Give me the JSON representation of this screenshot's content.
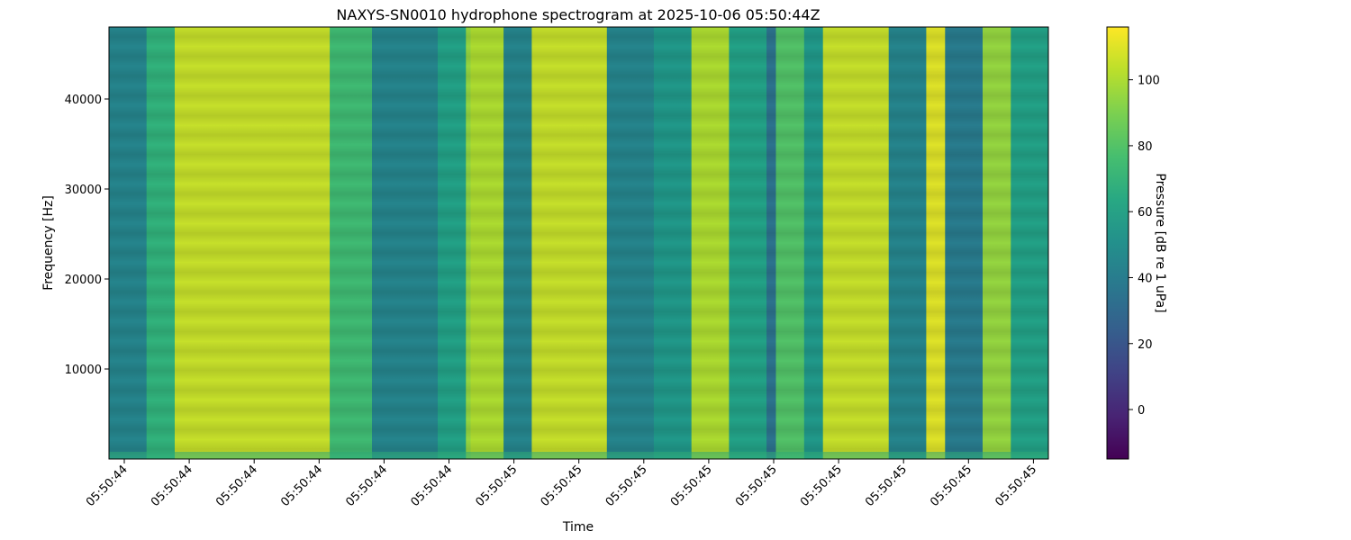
{
  "chart_data": {
    "type": "heatmap",
    "title": "NAXYS-SN0010 hydrophone spectrogram at 2025-10-06 05:50:44Z",
    "xlabel": "Time",
    "ylabel": "Frequency [Hz]",
    "colorbar_label": "Pressure [dB re 1 uPa]",
    "colormap": "viridis",
    "color_range": [
      -15,
      116
    ],
    "colorbar_ticks": [
      0,
      20,
      40,
      60,
      80,
      100
    ],
    "ylim": [
      0,
      48000
    ],
    "y_ticks": [
      10000,
      20000,
      30000,
      40000
    ],
    "x_tick_labels": [
      "05:50:44",
      "05:50:44",
      "05:50:44",
      "05:50:44",
      "05:50:44",
      "05:50:44",
      "05:50:45",
      "05:50:45",
      "05:50:45",
      "05:50:45",
      "05:50:45",
      "05:50:45",
      "05:50:45",
      "05:50:45",
      "05:50:45"
    ],
    "time_bands": [
      {
        "start": 0.0,
        "end": 0.04,
        "level": 45
      },
      {
        "start": 0.04,
        "end": 0.07,
        "level": 70
      },
      {
        "start": 0.07,
        "end": 0.235,
        "level": 105
      },
      {
        "start": 0.235,
        "end": 0.28,
        "level": 75
      },
      {
        "start": 0.28,
        "end": 0.35,
        "level": 45
      },
      {
        "start": 0.35,
        "end": 0.38,
        "level": 60
      },
      {
        "start": 0.38,
        "end": 0.385,
        "level": 95
      },
      {
        "start": 0.385,
        "end": 0.42,
        "level": 100
      },
      {
        "start": 0.42,
        "end": 0.45,
        "level": 45
      },
      {
        "start": 0.45,
        "end": 0.53,
        "level": 105
      },
      {
        "start": 0.53,
        "end": 0.58,
        "level": 45
      },
      {
        "start": 0.58,
        "end": 0.62,
        "level": 55
      },
      {
        "start": 0.62,
        "end": 0.66,
        "level": 100
      },
      {
        "start": 0.66,
        "end": 0.7,
        "level": 60
      },
      {
        "start": 0.7,
        "end": 0.71,
        "level": 35
      },
      {
        "start": 0.71,
        "end": 0.74,
        "level": 80
      },
      {
        "start": 0.74,
        "end": 0.76,
        "level": 55
      },
      {
        "start": 0.76,
        "end": 0.83,
        "level": 105
      },
      {
        "start": 0.83,
        "end": 0.87,
        "level": 45
      },
      {
        "start": 0.87,
        "end": 0.89,
        "level": 110
      },
      {
        "start": 0.89,
        "end": 0.93,
        "level": 40
      },
      {
        "start": 0.93,
        "end": 0.96,
        "level": 95
      },
      {
        "start": 0.96,
        "end": 1.0,
        "level": 60
      }
    ]
  }
}
